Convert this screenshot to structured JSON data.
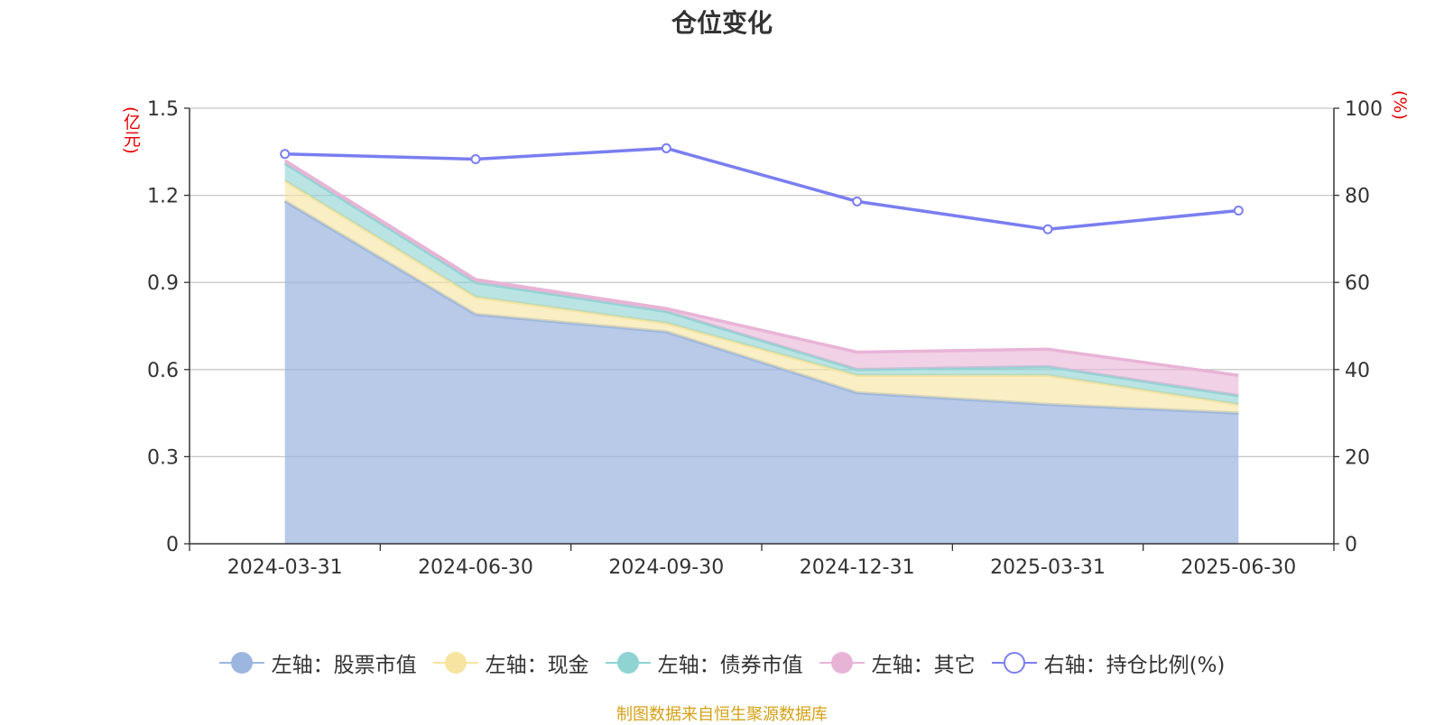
{
  "chart_data": {
    "type": "area",
    "title": "仓位变化",
    "categories": [
      "2024-03-31",
      "2024-06-30",
      "2024-09-30",
      "2024-12-31",
      "2025-03-31",
      "2025-06-30"
    ],
    "stacked": true,
    "left_axis": {
      "unit_label": "(亿元)",
      "ylim": [
        0,
        1.5
      ],
      "ticks": [
        "0",
        "0.3",
        "0.6",
        "0.9",
        "1.2",
        "1.5"
      ]
    },
    "right_axis": {
      "unit_label": "(%)",
      "ylim": [
        0,
        100
      ],
      "ticks": [
        "0",
        "20",
        "40",
        "60",
        "80",
        "100"
      ]
    },
    "grid": true,
    "legend_position": "bottom",
    "series": [
      {
        "name": "左轴：股票市值",
        "axis": "left",
        "kind": "area",
        "color": "#9db6df",
        "values": [
          1.18,
          0.79,
          0.73,
          0.52,
          0.48,
          0.45
        ]
      },
      {
        "name": "左轴：现金",
        "axis": "left",
        "kind": "area",
        "color": "#f6e4a0",
        "values": [
          0.07,
          0.06,
          0.03,
          0.06,
          0.1,
          0.03
        ]
      },
      {
        "name": "左轴：债券市值",
        "axis": "left",
        "kind": "area",
        "color": "#8fd3d3",
        "values": [
          0.06,
          0.05,
          0.04,
          0.02,
          0.03,
          0.03
        ]
      },
      {
        "name": "左轴：其它",
        "axis": "left",
        "kind": "area",
        "color": "#e8b4d6",
        "values": [
          0.01,
          0.01,
          0.01,
          0.06,
          0.06,
          0.07
        ]
      },
      {
        "name": "右轴：持仓比例(%)",
        "axis": "right",
        "kind": "line",
        "color": "#7a7ef0",
        "values": [
          89.5,
          88.3,
          90.8,
          78.6,
          72.2,
          76.5
        ]
      }
    ]
  },
  "source_note": "制图数据来自恒生聚源数据库"
}
